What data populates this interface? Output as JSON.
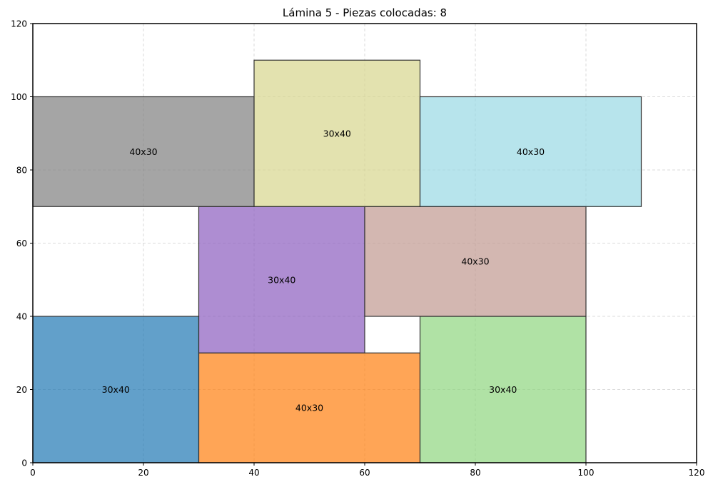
{
  "chart_data": {
    "type": "rectangle-packing",
    "title": "Lámina 5 - Piezas colocadas: 8",
    "xlim": [
      0,
      120
    ],
    "ylim": [
      0,
      120
    ],
    "xticks": [
      0,
      20,
      40,
      60,
      80,
      100,
      120
    ],
    "yticks": [
      0,
      20,
      40,
      60,
      80,
      100,
      120
    ],
    "grid": true,
    "pieces": [
      {
        "label": "30x40",
        "x": 0,
        "y": 0,
        "w": 30,
        "h": 40,
        "color": "#1f77b4"
      },
      {
        "label": "40x30",
        "x": 30,
        "y": 0,
        "w": 40,
        "h": 30,
        "color": "#ff7f0e"
      },
      {
        "label": "30x40",
        "x": 70,
        "y": 0,
        "w": 30,
        "h": 40,
        "color": "#8ed67f"
      },
      {
        "label": "30x40",
        "x": 30,
        "y": 30,
        "w": 30,
        "h": 40,
        "color": "#8c5cbf"
      },
      {
        "label": "40x30",
        "x": 60,
        "y": 40,
        "w": 40,
        "h": 30,
        "color": "#c09890"
      },
      {
        "label": "40x30",
        "x": 0,
        "y": 70,
        "w": 40,
        "h": 30,
        "color": "#7f7f7f"
      },
      {
        "label": "30x40",
        "x": 40,
        "y": 70,
        "w": 30,
        "h": 40,
        "color": "#d7d68d"
      },
      {
        "label": "40x30",
        "x": 70,
        "y": 70,
        "w": 40,
        "h": 30,
        "color": "#98d9e4"
      }
    ]
  }
}
